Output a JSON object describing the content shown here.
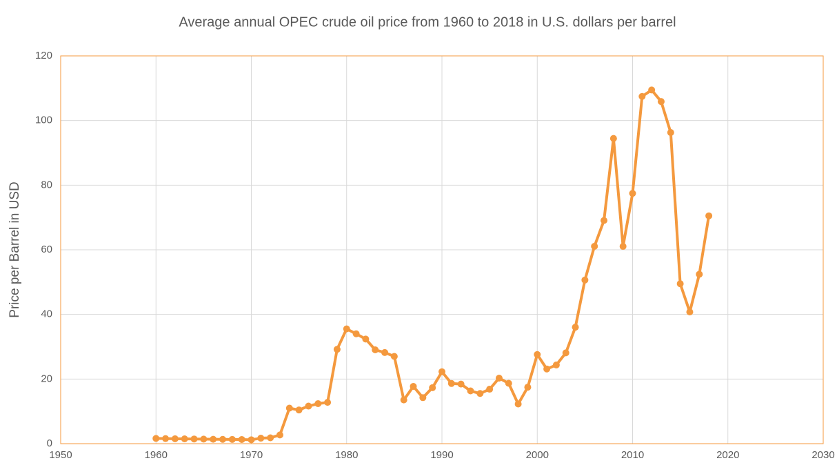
{
  "chart_data": {
    "type": "line",
    "title": "Average annual OPEC crude oil price from 1960 to 2018 in U.S. dollars per barrel",
    "y_label": "Price per Barrel in USD",
    "x": [
      1960,
      1961,
      1962,
      1963,
      1964,
      1965,
      1966,
      1967,
      1968,
      1969,
      1970,
      1971,
      1972,
      1973,
      1974,
      1975,
      1976,
      1977,
      1978,
      1979,
      1980,
      1981,
      1982,
      1983,
      1984,
      1985,
      1986,
      1987,
      1988,
      1989,
      1990,
      1991,
      1992,
      1993,
      1994,
      1995,
      1996,
      1997,
      1998,
      1999,
      2000,
      2001,
      2002,
      2003,
      2004,
      2005,
      2006,
      2007,
      2008,
      2009,
      2010,
      2011,
      2012,
      2013,
      2014,
      2015,
      2016,
      2017,
      2018
    ],
    "series": [
      {
        "name": "OPEC crude oil price",
        "color": "#f4993e",
        "values": [
          1.63,
          1.57,
          1.52,
          1.5,
          1.45,
          1.42,
          1.36,
          1.33,
          1.32,
          1.29,
          1.21,
          1.7,
          1.82,
          2.7,
          11.0,
          10.43,
          11.63,
          12.38,
          12.79,
          29.19,
          35.52,
          34.0,
          32.38,
          29.04,
          28.2,
          27.01,
          13.53,
          17.73,
          14.24,
          17.31,
          22.26,
          18.62,
          18.44,
          16.33,
          15.53,
          16.86,
          20.29,
          18.68,
          12.28,
          17.47,
          27.6,
          23.12,
          24.36,
          28.1,
          36.05,
          50.64,
          61.08,
          69.08,
          94.45,
          61.06,
          77.45,
          107.46,
          109.45,
          105.87,
          96.29,
          49.49,
          40.76,
          52.43,
          70.5
        ]
      }
    ],
    "xlim": [
      1950,
      2030
    ],
    "xticks": [
      1950,
      1960,
      1970,
      1980,
      1990,
      2000,
      2010,
      2020,
      2030
    ],
    "ylim": [
      0,
      120
    ],
    "yticks": [
      0,
      20,
      40,
      60,
      80,
      100,
      120
    ],
    "grid": true,
    "frame_color": "#f4993e"
  }
}
